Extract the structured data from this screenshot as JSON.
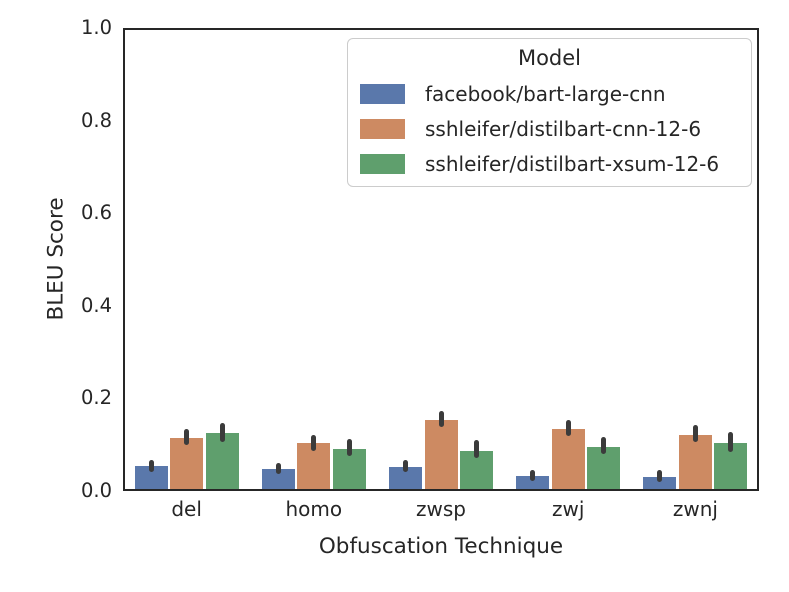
{
  "chart_data": {
    "type": "bar",
    "title": "",
    "xlabel": "Obfuscation Technique",
    "ylabel": "BLEU Score",
    "ylim": [
      0,
      1
    ],
    "yticks": [
      "0.0",
      "0.2",
      "0.4",
      "0.6",
      "0.8",
      "1.0"
    ],
    "categories": [
      "del",
      "homo",
      "zwsp",
      "zwj",
      "zwnj"
    ],
    "grid": false,
    "legend": {
      "title": "Model",
      "position": "upper-right"
    },
    "series": [
      {
        "name": "facebook/bart-large-cnn",
        "color": "#5a78ab",
        "values": [
          0.053,
          0.047,
          0.052,
          0.032,
          0.031
        ],
        "ci_low": [
          0.042,
          0.036,
          0.042,
          0.022,
          0.02
        ],
        "ci_high": [
          0.068,
          0.061,
          0.067,
          0.046,
          0.045
        ]
      },
      {
        "name": "sshleifer/distilbart-cnn-12-6",
        "color": "#cd8a62",
        "values": [
          0.115,
          0.104,
          0.153,
          0.133,
          0.122
        ],
        "ci_low": [
          0.099,
          0.087,
          0.139,
          0.119,
          0.106
        ],
        "ci_high": [
          0.135,
          0.121,
          0.173,
          0.153,
          0.143
        ]
      },
      {
        "name": "sshleifer/distilbart-xsum-12-6",
        "color": "#5f9f6d",
        "values": [
          0.125,
          0.09,
          0.086,
          0.096,
          0.104
        ],
        "ci_low": [
          0.105,
          0.076,
          0.071,
          0.08,
          0.085
        ],
        "ci_high": [
          0.147,
          0.112,
          0.11,
          0.116,
          0.128
        ]
      }
    ],
    "style": {
      "error_bar_color": "#3b3b3b",
      "spine_color": "#262626",
      "text_color": "#262626",
      "background": "#ffffff"
    }
  }
}
